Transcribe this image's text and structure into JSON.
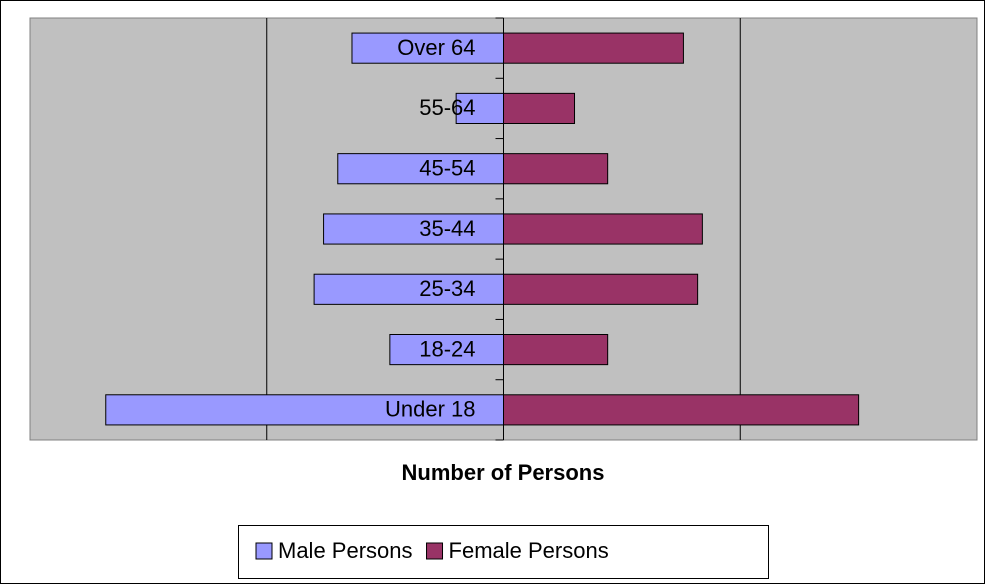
{
  "chart_data": {
    "type": "pyramid",
    "xlabel": "Number of Persons",
    "categories": [
      "Under 18",
      "18-24",
      "25-34",
      "35-44",
      "45-54",
      "55-64",
      "Over 64"
    ],
    "series": [
      {
        "name": "Male Persons",
        "color": "#9999ff",
        "side": "left",
        "values": [
          1.68,
          0.48,
          0.8,
          0.76,
          0.7,
          0.2,
          0.64
        ]
      },
      {
        "name": "Female Persons",
        "color": "#993366",
        "side": "right",
        "values": [
          1.5,
          0.44,
          0.82,
          0.84,
          0.44,
          0.3,
          0.76
        ]
      }
    ],
    "xlim": [
      -2,
      2
    ],
    "xticks": [
      -1,
      0,
      1
    ],
    "tick_labels": false,
    "grid": true,
    "legend": "bottom",
    "plot_background": "#c0c0c0"
  }
}
